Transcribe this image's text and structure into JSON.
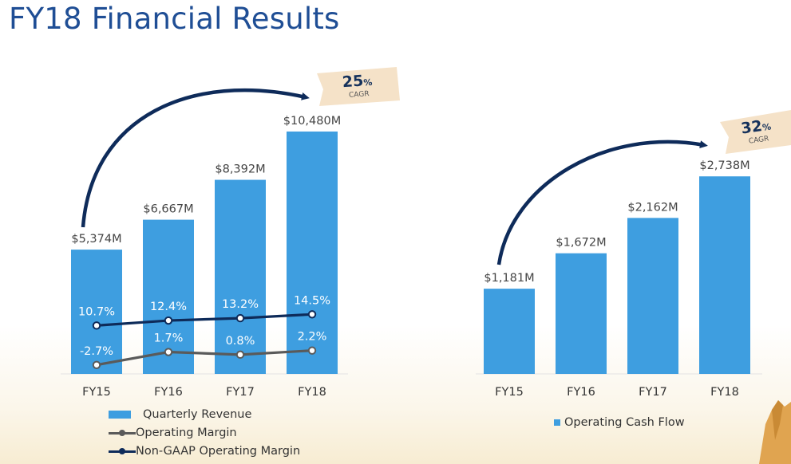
{
  "title": "FY18 Financial Results",
  "colors": {
    "bar": "#3e9ee0",
    "operating_margin_line": "#5a5a5a",
    "non_gaap_margin_line": "#0e2b5a",
    "title": "#1f4e95",
    "cagr_tag": "#f5e2c8"
  },
  "chart_data": [
    {
      "type": "bar",
      "categories": [
        "FY15",
        "FY16",
        "FY17",
        "FY18"
      ],
      "series": [
        {
          "name": "Quarterly Revenue",
          "values": [
            5374,
            6667,
            8392,
            10480
          ],
          "labels": [
            "$5,374M",
            "$6,667M",
            "$8,392M",
            "$10,480M"
          ]
        },
        {
          "name": "Operating Margin",
          "kind": "line",
          "values": [
            -2.7,
            1.7,
            0.8,
            2.2
          ],
          "labels": [
            "-2.7%",
            "1.7%",
            "0.8%",
            "2.2%"
          ]
        },
        {
          "name": "Non-GAAP Operating Margin",
          "kind": "line",
          "values": [
            10.7,
            12.4,
            13.2,
            14.5
          ],
          "labels": [
            "10.7%",
            "12.4%",
            "13.2%",
            "14.5%"
          ]
        }
      ],
      "annotation": {
        "value": "25",
        "unit": "%",
        "caption": "CAGR"
      },
      "legend_position": "bottom-left",
      "grid": false
    },
    {
      "type": "bar",
      "categories": [
        "FY15",
        "FY16",
        "FY17",
        "FY18"
      ],
      "series": [
        {
          "name": "Operating Cash Flow",
          "values": [
            1181,
            1672,
            2162,
            2738
          ],
          "labels": [
            "$1,181M",
            "$1,672M",
            "$2,162M",
            "$2,738M"
          ]
        }
      ],
      "annotation": {
        "value": "32",
        "unit": "%",
        "caption": "CAGR"
      },
      "legend_position": "bottom",
      "grid": false
    }
  ]
}
